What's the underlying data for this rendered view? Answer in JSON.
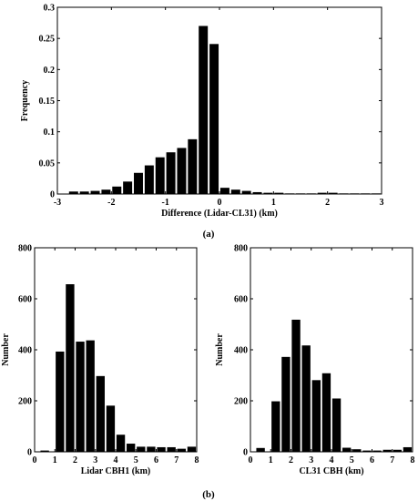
{
  "chart_data": [
    {
      "type": "bar",
      "xlabel": "Difference (Lidar-CL31) (km)",
      "ylabel": "Frequency",
      "xlim": [
        -3,
        3
      ],
      "ylim": [
        0,
        0.3
      ],
      "xticks": [
        -3,
        -2,
        -1,
        0,
        1,
        2,
        3
      ],
      "yticks": [
        0,
        0.05,
        0.1,
        0.15,
        0.2,
        0.25,
        0.3
      ],
      "ytick_labels": [
        "0",
        "0.05",
        "0.1",
        "0.15",
        "0.2",
        "0.25",
        "0.3"
      ],
      "bin_width": 0.2,
      "x": [
        -2.7,
        -2.5,
        -2.3,
        -2.1,
        -1.9,
        -1.7,
        -1.5,
        -1.3,
        -1.1,
        -0.9,
        -0.7,
        -0.5,
        -0.3,
        -0.1,
        0.1,
        0.3,
        0.5,
        0.7,
        0.9,
        1.1,
        1.3,
        1.5,
        1.7,
        1.9,
        2.1,
        2.3,
        2.5,
        2.7,
        2.9
      ],
      "values": [
        0.004,
        0.004,
        0.005,
        0.007,
        0.012,
        0.02,
        0.034,
        0.046,
        0.059,
        0.067,
        0.074,
        0.088,
        0.27,
        0.241,
        0.01,
        0.007,
        0.005,
        0.003,
        0.002,
        0.002,
        0.001,
        0.001,
        0.001,
        0.002,
        0.002,
        0.001,
        0.001,
        0.001,
        0.001
      ],
      "grid": false
    },
    {
      "type": "bar",
      "xlabel": "Lidar CBH1 (km)",
      "ylabel": "Number",
      "xlim": [
        0,
        8
      ],
      "ylim": [
        0,
        800
      ],
      "xticks": [
        0,
        1,
        2,
        3,
        4,
        5,
        6,
        7,
        8
      ],
      "yticks": [
        0,
        200,
        400,
        600,
        800
      ],
      "bin_width": 0.5,
      "x": [
        0.5,
        1.25,
        1.75,
        2.25,
        2.75,
        3.25,
        3.75,
        4.25,
        4.75,
        5.25,
        5.75,
        6.25,
        6.75,
        7.25,
        7.75
      ],
      "values": [
        5,
        393,
        657,
        432,
        437,
        297,
        181,
        67,
        32,
        20,
        20,
        18,
        18,
        12,
        20
      ],
      "grid": false
    },
    {
      "type": "bar",
      "xlabel": "CL31 CBH (km)",
      "ylabel": "Number",
      "xlim": [
        0,
        8
      ],
      "ylim": [
        0,
        800
      ],
      "xticks": [
        0,
        1,
        2,
        3,
        4,
        5,
        6,
        7,
        8
      ],
      "yticks": [
        0,
        200,
        400,
        600,
        800
      ],
      "bin_width": 0.5,
      "x": [
        0.5,
        1.25,
        1.75,
        2.25,
        2.75,
        3.25,
        3.75,
        4.25,
        4.75,
        5.25,
        5.75,
        6.25,
        6.75,
        7.25,
        7.75
      ],
      "values": [
        15,
        198,
        372,
        518,
        417,
        281,
        308,
        209,
        16,
        10,
        5,
        5,
        8,
        8,
        18
      ],
      "grid": false
    }
  ],
  "panel_labels": {
    "a": "(a)",
    "b": "(b)"
  },
  "colors": {
    "bar": "#000000",
    "axis": "#000000",
    "background": "#ffffff"
  }
}
